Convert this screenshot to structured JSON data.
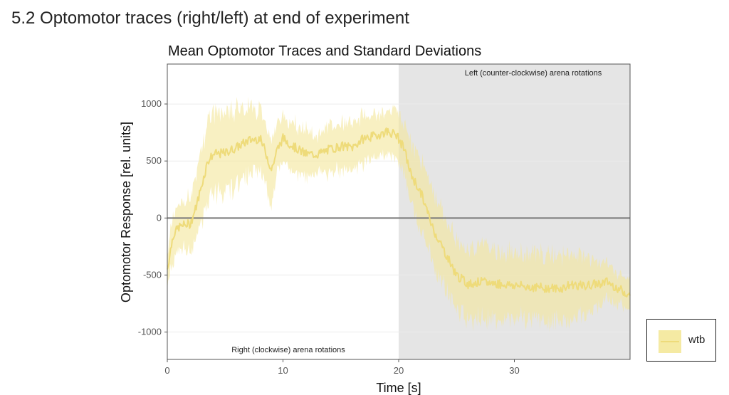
{
  "section": {
    "title": "5.2 Optomotor traces (right/left) at end of experiment"
  },
  "chart_data": {
    "type": "line",
    "title": "Mean Optomotor Traces and Standard Deviations",
    "xlabel": "Time [s]",
    "ylabel": "Optomotor Response [rel. units]",
    "xlim": [
      0,
      40
    ],
    "ylim": [
      -1240,
      1350
    ],
    "x_ticks": [
      0,
      10,
      20,
      30
    ],
    "x_tick_labels": [
      "0",
      "10",
      "20",
      "30"
    ],
    "y_ticks": [
      -1000,
      -500,
      0,
      500,
      1000
    ],
    "y_tick_labels": [
      "-1000",
      "-500",
      "0",
      "500",
      "1000"
    ],
    "grid": true,
    "shaded_region": {
      "x_start": 20,
      "x_end": 40,
      "color": "#e5e5e5"
    },
    "annotations": [
      {
        "text": "Right (clockwise) arena rotations",
        "region": "bottom of white (0-20 s) area"
      },
      {
        "text": "Left (counter-clockwise) arena rotations",
        "region": "top of grey (20-40 s) area"
      }
    ],
    "legend": {
      "position": "bottom-right-outside",
      "entries": [
        "wtb"
      ]
    },
    "series": [
      {
        "name": "wtb",
        "line_color": "#eedb7a",
        "band_color": "#f3e69a",
        "x": [
          0,
          0.5,
          1,
          1.5,
          2,
          2.5,
          3,
          3.5,
          4,
          5,
          6,
          7,
          8,
          8.5,
          9,
          9.5,
          10,
          11,
          12,
          13,
          14,
          15,
          16,
          17,
          18,
          19,
          19.8,
          20.5,
          21,
          22,
          23,
          24,
          25,
          26,
          27,
          28,
          30,
          32,
          34,
          35,
          36,
          38,
          40
        ],
        "mean": [
          -450,
          -150,
          -80,
          -60,
          -50,
          100,
          300,
          500,
          560,
          570,
          620,
          680,
          700,
          580,
          420,
          600,
          700,
          620,
          560,
          560,
          600,
          630,
          620,
          700,
          720,
          760,
          730,
          600,
          400,
          200,
          -100,
          -300,
          -500,
          -580,
          -560,
          -570,
          -590,
          -610,
          -620,
          -580,
          -600,
          -560,
          -680
        ],
        "sd": [
          150,
          200,
          200,
          200,
          250,
          250,
          300,
          350,
          350,
          350,
          330,
          300,
          250,
          250,
          300,
          200,
          200,
          200,
          200,
          150,
          200,
          200,
          200,
          200,
          180,
          180,
          200,
          200,
          250,
          300,
          300,
          300,
          300,
          300,
          300,
          300,
          280,
          280,
          280,
          280,
          250,
          150,
          120
        ]
      }
    ]
  }
}
